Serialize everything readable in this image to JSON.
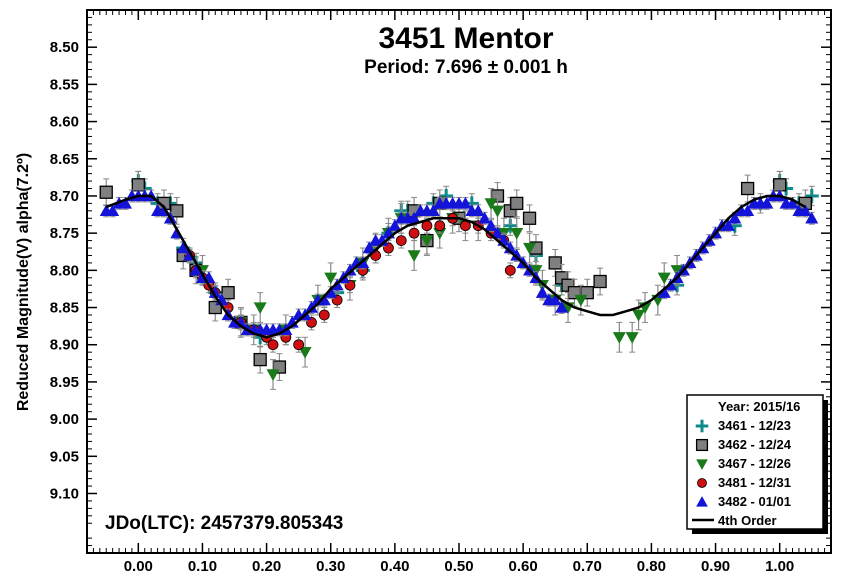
{
  "chart_data": {
    "type": "scatter",
    "title": "3451 Mentor",
    "subtitle": "Period: 7.696 ± 0.001 h",
    "ylabel": "Reduced Magnitude(V) alpha(7.2º)",
    "xlabel": "",
    "annotation": "JDo(LTC): 2457379.805343",
    "xlim": [
      -0.08,
      1.08
    ],
    "ylim": [
      8.45,
      9.18
    ],
    "y_reversed": true,
    "x_ticks": [
      "0.00",
      "0.10",
      "0.20",
      "0.30",
      "0.40",
      "0.50",
      "0.60",
      "0.70",
      "0.80",
      "0.90",
      "1.00"
    ],
    "y_ticks": [
      "8.50",
      "8.55",
      "8.60",
      "8.65",
      "8.70",
      "8.75",
      "8.80",
      "8.85",
      "8.90",
      "8.95",
      "9.00",
      "9.05",
      "9.10"
    ],
    "grid": false,
    "legend_placement": "bottom-right",
    "legend_title": "Year: 2015/16",
    "series": [
      {
        "name": "3461 - 12/23",
        "marker": "plus",
        "color": "#0f8a8a",
        "err": 0.013,
        "points": [
          [
            0.0,
            8.68
          ],
          [
            0.01,
            8.69
          ],
          [
            0.03,
            8.71
          ],
          [
            0.05,
            8.71
          ],
          [
            0.07,
            8.77
          ],
          [
            0.09,
            8.79
          ],
          [
            0.12,
            8.83
          ],
          [
            0.19,
            8.89
          ],
          [
            0.31,
            8.83
          ],
          [
            0.35,
            8.8
          ],
          [
            0.39,
            8.75
          ],
          [
            0.41,
            8.72
          ],
          [
            0.42,
            8.72
          ],
          [
            0.46,
            8.71
          ],
          [
            0.48,
            8.7
          ],
          [
            0.52,
            8.71
          ],
          [
            0.58,
            8.74
          ],
          [
            0.62,
            8.78
          ],
          [
            0.66,
            8.82
          ],
          [
            0.84,
            8.82
          ],
          [
            0.93,
            8.74
          ],
          [
            0.97,
            8.71
          ],
          [
            1.0,
            8.68
          ],
          [
            1.01,
            8.69
          ],
          [
            1.03,
            8.71
          ],
          [
            1.05,
            8.7
          ]
        ]
      },
      {
        "name": "3462 - 12/24",
        "marker": "square",
        "color": "#808080",
        "err": 0.018,
        "points": [
          [
            -0.05,
            8.695
          ],
          [
            0.0,
            8.685
          ],
          [
            0.04,
            8.71
          ],
          [
            0.06,
            8.72
          ],
          [
            0.07,
            8.78
          ],
          [
            0.09,
            8.8
          ],
          [
            0.12,
            8.85
          ],
          [
            0.14,
            8.83
          ],
          [
            0.16,
            8.87
          ],
          [
            0.19,
            8.92
          ],
          [
            0.22,
            8.93
          ],
          [
            0.43,
            8.72
          ],
          [
            0.45,
            8.76
          ],
          [
            0.47,
            8.71
          ],
          [
            0.5,
            8.73
          ],
          [
            0.56,
            8.7
          ],
          [
            0.58,
            8.72
          ],
          [
            0.59,
            8.71
          ],
          [
            0.61,
            8.73
          ],
          [
            0.62,
            8.77
          ],
          [
            0.65,
            8.79
          ],
          [
            0.66,
            8.81
          ],
          [
            0.67,
            8.82
          ],
          [
            0.68,
            8.83
          ],
          [
            0.7,
            8.83
          ],
          [
            0.72,
            8.815
          ],
          [
            0.95,
            8.69
          ],
          [
            1.0,
            8.685
          ],
          [
            1.04,
            8.71
          ]
        ]
      },
      {
        "name": "3467 - 12/26",
        "marker": "tri-down",
        "color": "#1a7a1a",
        "err": 0.02,
        "points": [
          [
            0.1,
            8.8
          ],
          [
            0.16,
            8.87
          ],
          [
            0.18,
            8.88
          ],
          [
            0.19,
            8.85
          ],
          [
            0.21,
            8.94
          ],
          [
            0.23,
            8.88
          ],
          [
            0.26,
            8.91
          ],
          [
            0.28,
            8.84
          ],
          [
            0.3,
            8.81
          ],
          [
            0.33,
            8.82
          ],
          [
            0.35,
            8.79
          ],
          [
            0.37,
            8.77
          ],
          [
            0.39,
            8.75
          ],
          [
            0.41,
            8.73
          ],
          [
            0.43,
            8.78
          ],
          [
            0.45,
            8.76
          ],
          [
            0.47,
            8.75
          ],
          [
            0.49,
            8.73
          ],
          [
            0.51,
            8.74
          ],
          [
            0.53,
            8.74
          ],
          [
            0.55,
            8.71
          ],
          [
            0.56,
            8.72
          ],
          [
            0.57,
            8.75
          ],
          [
            0.59,
            8.75
          ],
          [
            0.61,
            8.77
          ],
          [
            0.62,
            8.8
          ],
          [
            0.63,
            8.82
          ],
          [
            0.65,
            8.84
          ],
          [
            0.67,
            8.85
          ],
          [
            0.69,
            8.84
          ],
          [
            0.75,
            8.89
          ],
          [
            0.77,
            8.89
          ],
          [
            0.78,
            8.86
          ],
          [
            0.79,
            8.85
          ],
          [
            0.81,
            8.84
          ],
          [
            0.82,
            8.81
          ],
          [
            0.84,
            8.8
          ]
        ]
      },
      {
        "name": "3481 - 12/31",
        "marker": "circle",
        "color": "#d01010",
        "err": 0.01,
        "points": [
          [
            0.08,
            8.78
          ],
          [
            0.09,
            8.8
          ],
          [
            0.1,
            8.81
          ],
          [
            0.11,
            8.82
          ],
          [
            0.12,
            8.83
          ],
          [
            0.14,
            8.85
          ],
          [
            0.16,
            8.87
          ],
          [
            0.18,
            8.88
          ],
          [
            0.2,
            8.89
          ],
          [
            0.21,
            8.9
          ],
          [
            0.23,
            8.89
          ],
          [
            0.25,
            8.9
          ],
          [
            0.27,
            8.87
          ],
          [
            0.29,
            8.86
          ],
          [
            0.31,
            8.84
          ],
          [
            0.33,
            8.82
          ],
          [
            0.35,
            8.8
          ],
          [
            0.37,
            8.78
          ],
          [
            0.39,
            8.77
          ],
          [
            0.41,
            8.76
          ],
          [
            0.43,
            8.75
          ],
          [
            0.45,
            8.74
          ],
          [
            0.47,
            8.74
          ],
          [
            0.49,
            8.73
          ],
          [
            0.51,
            8.74
          ],
          [
            0.53,
            8.74
          ],
          [
            0.55,
            8.75
          ],
          [
            0.57,
            8.76
          ],
          [
            0.58,
            8.8
          ]
        ]
      },
      {
        "name": "3482 - 01/01",
        "marker": "tri-up",
        "color": "#1414d8",
        "err": 0.008,
        "points": [
          [
            -0.05,
            8.72
          ],
          [
            -0.04,
            8.72
          ],
          [
            -0.03,
            8.71
          ],
          [
            -0.02,
            8.71
          ],
          [
            -0.01,
            8.7
          ],
          [
            0.0,
            8.7
          ],
          [
            0.01,
            8.7
          ],
          [
            0.02,
            8.7
          ],
          [
            0.03,
            8.72
          ],
          [
            0.04,
            8.72
          ],
          [
            0.05,
            8.73
          ],
          [
            0.06,
            8.75
          ],
          [
            0.07,
            8.77
          ],
          [
            0.08,
            8.78
          ],
          [
            0.09,
            8.8
          ],
          [
            0.1,
            8.81
          ],
          [
            0.11,
            8.81
          ],
          [
            0.12,
            8.83
          ],
          [
            0.13,
            8.84
          ],
          [
            0.14,
            8.86
          ],
          [
            0.15,
            8.87
          ],
          [
            0.16,
            8.87
          ],
          [
            0.17,
            8.88
          ],
          [
            0.18,
            8.88
          ],
          [
            0.19,
            8.88
          ],
          [
            0.2,
            8.88
          ],
          [
            0.21,
            8.88
          ],
          [
            0.22,
            8.88
          ],
          [
            0.23,
            8.88
          ],
          [
            0.24,
            8.87
          ],
          [
            0.25,
            8.86
          ],
          [
            0.26,
            8.86
          ],
          [
            0.27,
            8.85
          ],
          [
            0.28,
            8.84
          ],
          [
            0.29,
            8.84
          ],
          [
            0.3,
            8.83
          ],
          [
            0.31,
            8.82
          ],
          [
            0.32,
            8.81
          ],
          [
            0.33,
            8.8
          ],
          [
            0.34,
            8.79
          ],
          [
            0.35,
            8.79
          ],
          [
            0.36,
            8.77
          ],
          [
            0.37,
            8.76
          ],
          [
            0.38,
            8.76
          ],
          [
            0.39,
            8.75
          ],
          [
            0.4,
            8.74
          ],
          [
            0.41,
            8.73
          ],
          [
            0.42,
            8.73
          ],
          [
            0.43,
            8.73
          ],
          [
            0.44,
            8.72
          ],
          [
            0.45,
            8.72
          ],
          [
            0.46,
            8.72
          ],
          [
            0.47,
            8.71
          ],
          [
            0.48,
            8.71
          ],
          [
            0.49,
            8.71
          ],
          [
            0.5,
            8.71
          ],
          [
            0.51,
            8.71
          ],
          [
            0.52,
            8.72
          ],
          [
            0.53,
            8.72
          ],
          [
            0.54,
            8.73
          ],
          [
            0.55,
            8.74
          ],
          [
            0.56,
            8.75
          ],
          [
            0.57,
            8.76
          ],
          [
            0.58,
            8.77
          ],
          [
            0.59,
            8.78
          ],
          [
            0.6,
            8.79
          ],
          [
            0.61,
            8.8
          ],
          [
            0.62,
            8.81
          ],
          [
            0.63,
            8.83
          ],
          [
            0.64,
            8.84
          ],
          [
            0.65,
            8.84
          ],
          [
            0.66,
            8.85
          ],
          [
            0.82,
            8.83
          ],
          [
            0.83,
            8.82
          ],
          [
            0.84,
            8.81
          ],
          [
            0.85,
            8.8
          ],
          [
            0.86,
            8.79
          ],
          [
            0.87,
            8.78
          ],
          [
            0.88,
            8.77
          ],
          [
            0.89,
            8.76
          ],
          [
            0.9,
            8.75
          ],
          [
            0.91,
            8.74
          ],
          [
            0.92,
            8.74
          ],
          [
            0.93,
            8.73
          ],
          [
            0.94,
            8.72
          ],
          [
            0.95,
            8.72
          ],
          [
            0.96,
            8.71
          ],
          [
            0.97,
            8.71
          ],
          [
            0.98,
            8.71
          ],
          [
            0.99,
            8.7
          ],
          [
            1.0,
            8.7
          ],
          [
            1.01,
            8.71
          ],
          [
            1.02,
            8.71
          ],
          [
            1.03,
            8.72
          ],
          [
            1.04,
            8.72
          ],
          [
            1.05,
            8.73
          ]
        ]
      }
    ],
    "fit": {
      "name": "4th Order",
      "color": "#000000",
      "points": [
        [
          -0.05,
          8.715
        ],
        [
          -0.02,
          8.705
        ],
        [
          0.0,
          8.7
        ],
        [
          0.02,
          8.7
        ],
        [
          0.04,
          8.715
        ],
        [
          0.06,
          8.745
        ],
        [
          0.08,
          8.775
        ],
        [
          0.1,
          8.805
        ],
        [
          0.12,
          8.835
        ],
        [
          0.14,
          8.86
        ],
        [
          0.16,
          8.875
        ],
        [
          0.18,
          8.885
        ],
        [
          0.2,
          8.89
        ],
        [
          0.22,
          8.885
        ],
        [
          0.24,
          8.875
        ],
        [
          0.26,
          8.86
        ],
        [
          0.28,
          8.845
        ],
        [
          0.3,
          8.825
        ],
        [
          0.32,
          8.81
        ],
        [
          0.34,
          8.795
        ],
        [
          0.36,
          8.78
        ],
        [
          0.38,
          8.765
        ],
        [
          0.4,
          8.75
        ],
        [
          0.42,
          8.74
        ],
        [
          0.44,
          8.735
        ],
        [
          0.46,
          8.73
        ],
        [
          0.48,
          8.73
        ],
        [
          0.5,
          8.73
        ],
        [
          0.52,
          8.735
        ],
        [
          0.54,
          8.745
        ],
        [
          0.56,
          8.76
        ],
        [
          0.58,
          8.775
        ],
        [
          0.6,
          8.79
        ],
        [
          0.62,
          8.81
        ],
        [
          0.64,
          8.825
        ],
        [
          0.66,
          8.84
        ],
        [
          0.68,
          8.85
        ],
        [
          0.7,
          8.855
        ],
        [
          0.72,
          8.86
        ],
        [
          0.74,
          8.86
        ],
        [
          0.76,
          8.855
        ],
        [
          0.78,
          8.85
        ],
        [
          0.8,
          8.84
        ],
        [
          0.82,
          8.825
        ],
        [
          0.84,
          8.81
        ],
        [
          0.86,
          8.79
        ],
        [
          0.88,
          8.77
        ],
        [
          0.9,
          8.75
        ],
        [
          0.92,
          8.73
        ],
        [
          0.94,
          8.715
        ],
        [
          0.96,
          8.705
        ],
        [
          0.98,
          8.7
        ],
        [
          1.0,
          8.7
        ],
        [
          1.02,
          8.705
        ],
        [
          1.04,
          8.715
        ]
      ]
    }
  }
}
